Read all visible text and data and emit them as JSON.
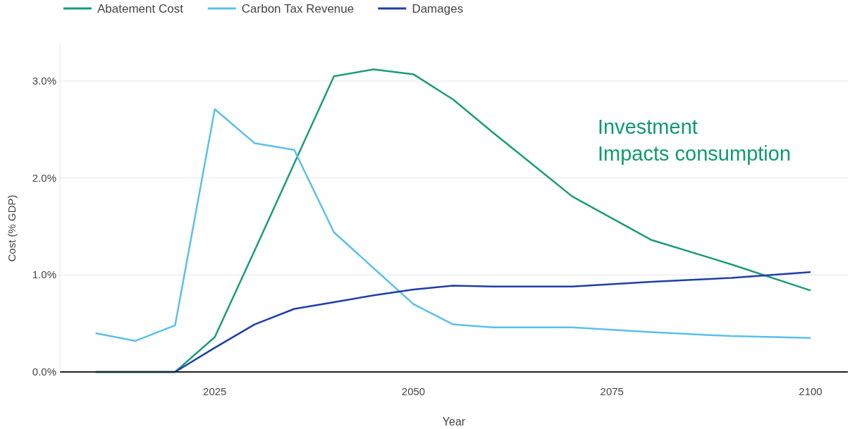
{
  "chart_data": {
    "type": "line",
    "xlabel": "Year",
    "ylabel": "Cost (% GDP)",
    "x": [
      2010,
      2015,
      2020,
      2025,
      2030,
      2035,
      2040,
      2045,
      2050,
      2055,
      2060,
      2070,
      2080,
      2090,
      2100
    ],
    "series": [
      {
        "name": "Abatement Cost",
        "color": "#1a9c7b",
        "values": [
          0,
          0,
          0,
          0.36,
          1.25,
          2.15,
          3.05,
          3.12,
          3.07,
          2.81,
          2.47,
          1.81,
          1.36,
          1.11,
          0.84
        ]
      },
      {
        "name": "Carbon Tax Revenue",
        "color": "#5bc0eb",
        "values": [
          0.4,
          0.32,
          0.48,
          2.71,
          2.36,
          2.29,
          1.44,
          1.07,
          0.7,
          0.49,
          0.46,
          0.46,
          0.41,
          0.37,
          0.35
        ]
      },
      {
        "name": "Damages",
        "color": "#1f3fa8",
        "values": [
          0,
          0,
          0,
          0.25,
          0.49,
          0.65,
          0.72,
          0.79,
          0.85,
          0.89,
          0.88,
          0.88,
          0.93,
          0.97,
          1.03
        ]
      }
    ],
    "xlim": [
      2005.5,
      2104.7
    ],
    "xticks": [
      2025,
      2050,
      2075,
      2100
    ],
    "ylim": [
      0,
      3.4
    ],
    "yticks": [
      {
        "value": 0,
        "label": "0.0%"
      },
      {
        "value": 1,
        "label": "1.0%"
      },
      {
        "value": 2,
        "label": "2.0%"
      },
      {
        "value": 3,
        "label": "3.0%"
      }
    ],
    "grid": "y",
    "legend": "top left",
    "marker": "none",
    "line_style": "solid",
    "annotations": [
      "Investment\nImpacts consumption"
    ]
  }
}
